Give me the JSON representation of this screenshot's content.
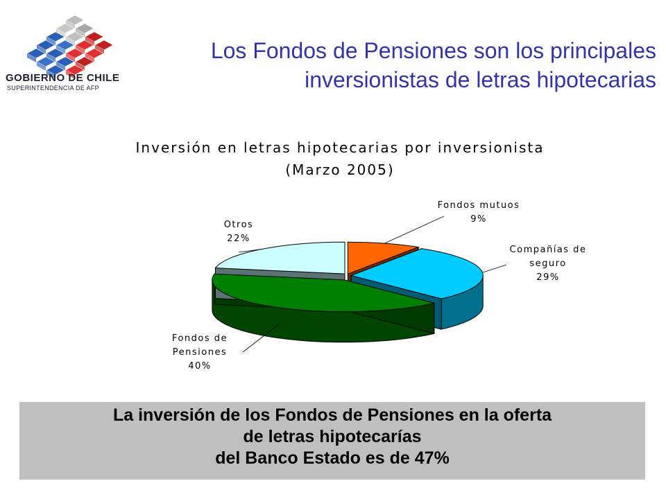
{
  "header": {
    "logo_line1": "GOBIERNO DE CHILE",
    "logo_line2": "SUPERINTENDENCIA DE AFP",
    "title_line1": "Los Fondos de Pensiones son los principales",
    "title_line2": "inversionistas de letras hipotecarias"
  },
  "chart_data": {
    "type": "pie",
    "title": [
      "Inversión en letras hipotecarias por inversionista",
      "(Marzo 2005)"
    ],
    "slices": [
      {
        "label": [
          "Fondos mutuos"
        ],
        "value": 9,
        "value_label": "9%",
        "color": "#ff6600"
      },
      {
        "label": [
          "Compañías de",
          "seguro"
        ],
        "value": 29,
        "value_label": "29%",
        "color": "#00ccff"
      },
      {
        "label": [
          "Fondos de",
          "Pensiones"
        ],
        "value": 40,
        "value_label": "40%",
        "color": "#008000"
      },
      {
        "label": [
          "Otros"
        ],
        "value": 22,
        "value_label": "22%",
        "color": "#ccffff"
      }
    ]
  },
  "footer_note": {
    "line1": "La inversión de los Fondos de Pensiones en la oferta",
    "line2": "de letras hipotecarías",
    "line3": "del Banco Estado es de 47%"
  }
}
